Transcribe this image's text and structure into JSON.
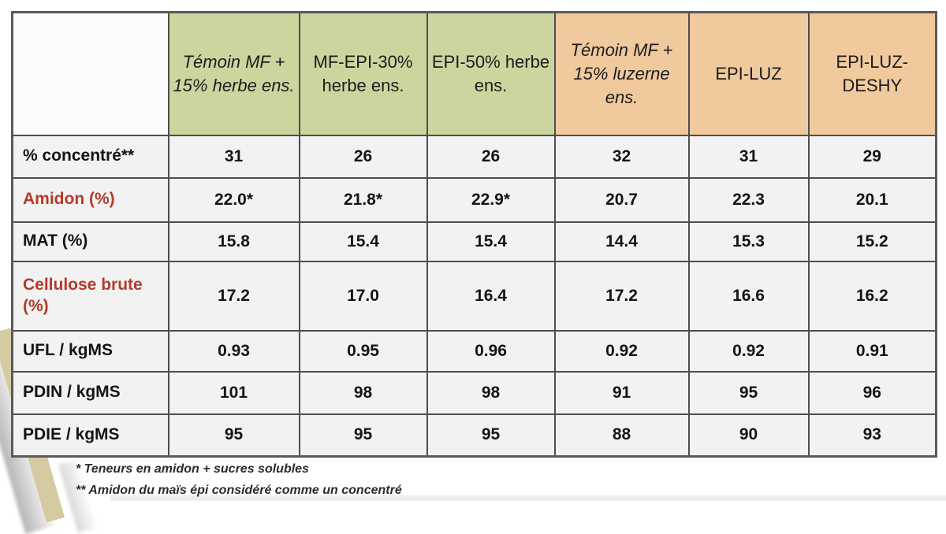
{
  "table": {
    "corner_label": "",
    "columns": [
      {
        "label": "Témoin MF + 15% herbe ens.",
        "theme": "green",
        "italic": true
      },
      {
        "label": "MF-EPI-30% herbe ens.",
        "theme": "green",
        "italic": false
      },
      {
        "label": "EPI-50% herbe ens.",
        "theme": "green",
        "italic": false
      },
      {
        "label": "Témoin MF + 15% luzerne ens.",
        "theme": "orange",
        "italic": true
      },
      {
        "label": "EPI-LUZ",
        "theme": "orange",
        "italic": false
      },
      {
        "label": "EPI-LUZ-DESHY",
        "theme": "orange",
        "italic": false
      }
    ],
    "rows": [
      {
        "label": "% concentré**",
        "red": false,
        "values": [
          "31",
          "26",
          "26",
          "32",
          "31",
          "29"
        ]
      },
      {
        "label": "Amidon (%)",
        "red": true,
        "values": [
          "22.0*",
          "21.8*",
          "22.9*",
          "20.7",
          "22.3",
          "20.1"
        ]
      },
      {
        "label": "MAT (%)",
        "red": false,
        "values": [
          "15.8",
          "15.4",
          "15.4",
          "14.4",
          "15.3",
          "15.2"
        ]
      },
      {
        "label": "Cellulose brute (%)",
        "red": true,
        "values": [
          "17.2",
          "17.0",
          "16.4",
          "17.2",
          "16.6",
          "16.2"
        ]
      },
      {
        "label": "UFL / kgMS",
        "red": false,
        "values": [
          "0.93",
          "0.95",
          "0.96",
          "0.92",
          "0.92",
          "0.91"
        ]
      },
      {
        "label": "PDIN / kgMS",
        "red": false,
        "values": [
          "101",
          "98",
          "98",
          "91",
          "95",
          "96"
        ]
      },
      {
        "label": "PDIE / kgMS",
        "red": false,
        "values": [
          "95",
          "95",
          "95",
          "88",
          "90",
          "93"
        ]
      }
    ]
  },
  "footnotes": [
    "* Teneurs en amidon + sucres solubles",
    "** Amidon du maïs épi considéré comme un concentré"
  ],
  "colors": {
    "header_green": "#ccd59e",
    "header_orange": "#f0c99d",
    "cell_background": "#f2f2f2",
    "grid_border": "#4e4e4e",
    "red_row_label": "#b43a2a",
    "khaki_band": "#d6caa2"
  }
}
